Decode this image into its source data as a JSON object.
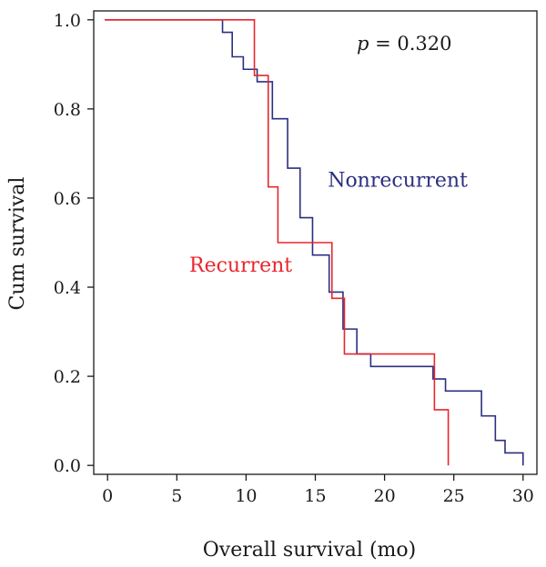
{
  "chart_data": {
    "type": "line",
    "step": true,
    "xlabel": "Overall survival (mo)",
    "ylabel": "Cum survival",
    "xlim": [
      -1,
      31
    ],
    "ylim": [
      -0.02,
      1.02
    ],
    "x_ticks": [
      0,
      5,
      10,
      15,
      20,
      25,
      30
    ],
    "y_ticks": [
      0.0,
      0.2,
      0.4,
      0.6,
      0.8,
      1.0
    ],
    "y_tick_labels": [
      "0.0",
      "0.2",
      "0.4",
      "0.6",
      "0.8",
      "1.0"
    ],
    "annotation": {
      "p_symbol": "p",
      "p_text": " = 0.320"
    },
    "series": [
      {
        "name": "Nonrecurrent",
        "color": "#2b2f80",
        "x": [
          -0.2,
          8.3,
          9.0,
          9.8,
          10.8,
          11.9,
          13.0,
          13.9,
          14.8,
          16.0,
          17.0,
          18.0,
          19.0,
          20.3,
          21.5,
          23.5,
          24.4,
          27.0,
          28.0,
          28.7,
          30.0
        ],
        "y": [
          1.0,
          0.972,
          0.917,
          0.889,
          0.861,
          0.778,
          0.667,
          0.556,
          0.472,
          0.389,
          0.306,
          0.25,
          0.222,
          0.222,
          0.222,
          0.194,
          0.167,
          0.111,
          0.056,
          0.028,
          0.0
        ]
      },
      {
        "name": "Recurrent",
        "color": "#e8262d",
        "x": [
          -0.2,
          10.6,
          11.6,
          12.3,
          16.2,
          17.1,
          23.6,
          24.6
        ],
        "y": [
          1.0,
          0.875,
          0.625,
          0.5,
          0.375,
          0.25,
          0.125,
          0.0
        ]
      }
    ],
    "series_label_positions": [
      {
        "name": "Nonrecurrent",
        "x": 15.9,
        "y": 0.625
      },
      {
        "name": "Recurrent",
        "x": 5.9,
        "y": 0.435
      }
    ]
  }
}
